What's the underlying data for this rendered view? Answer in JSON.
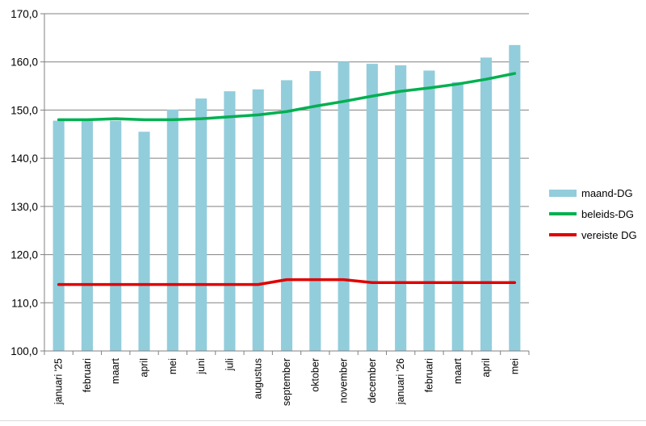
{
  "chart_data": {
    "type": "bar",
    "categories": [
      "januari '25",
      "februari",
      "maart",
      "april",
      "mei",
      "juni",
      "juli",
      "augustus",
      "september",
      "oktober",
      "november",
      "december",
      "januari '26",
      "februari",
      "maart",
      "april",
      "mei"
    ],
    "ylim": [
      100,
      170
    ],
    "yticks": [
      "100,0",
      "110,0",
      "120,0",
      "130,0",
      "140,0",
      "150,0",
      "160,0",
      "170,0"
    ],
    "grid": true,
    "legend_position": "right",
    "series": [
      {
        "name": "maand-DG",
        "type": "bar",
        "color": "#92CDDC",
        "values": [
          147.8,
          147.9,
          147.8,
          145.5,
          150.1,
          152.4,
          153.9,
          154.3,
          156.2,
          158.1,
          160.0,
          159.6,
          159.3,
          158.2,
          155.8,
          160.9,
          163.5
        ]
      },
      {
        "name": "beleids-DG",
        "type": "line",
        "color": "#00B050",
        "values": [
          148.0,
          148.0,
          148.2,
          148.0,
          148.0,
          148.2,
          148.6,
          149.0,
          149.7,
          150.8,
          151.8,
          152.9,
          153.9,
          154.6,
          155.4,
          156.4,
          157.6
        ]
      },
      {
        "name": "vereiste DG",
        "type": "line",
        "color": "#E00000",
        "values": [
          113.8,
          113.8,
          113.8,
          113.8,
          113.8,
          113.8,
          113.8,
          113.8,
          114.8,
          114.8,
          114.8,
          114.2,
          114.2,
          114.2,
          114.2,
          114.2,
          114.2
        ]
      }
    ]
  }
}
